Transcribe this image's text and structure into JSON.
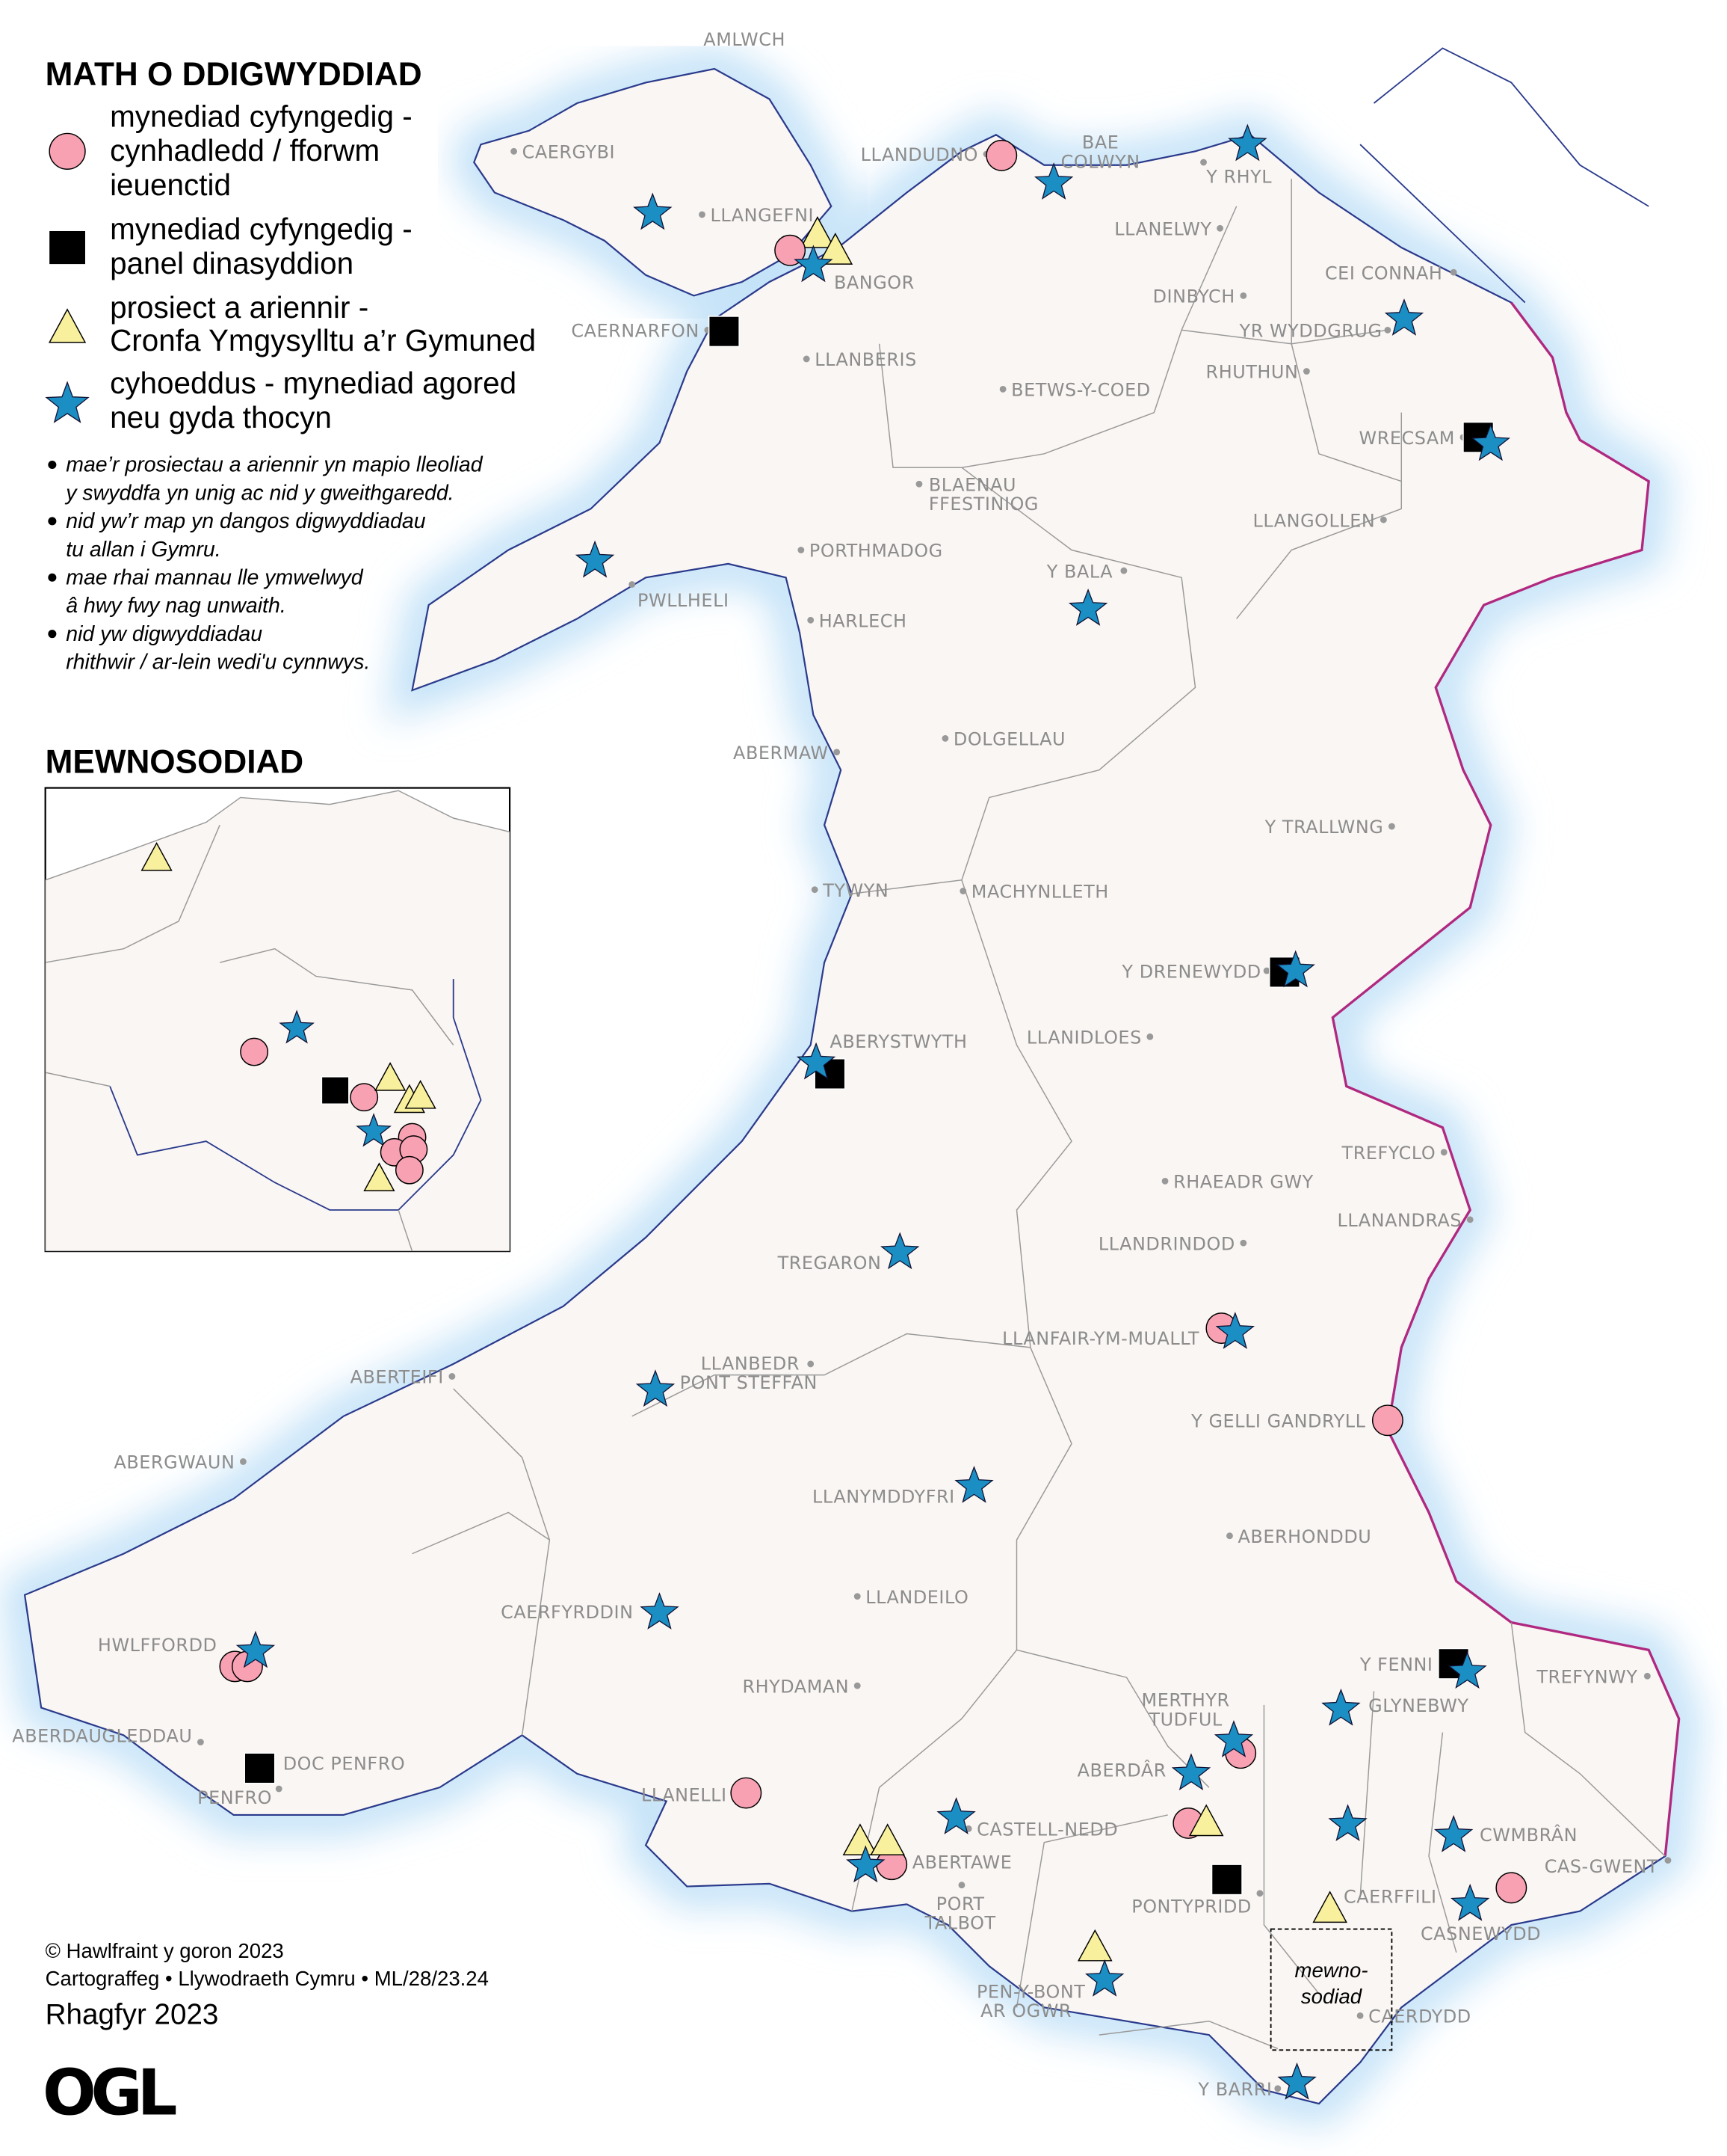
{
  "legend": {
    "title": "MATH O DDIGWYDDIAD",
    "items": [
      {
        "symbol": "pink-circle",
        "color": "#f7a1b3",
        "lines": [
          "mynediad cyfyngedig -",
          "cynhadledd / fforwm",
          "ieuenctid"
        ]
      },
      {
        "symbol": "black-square",
        "color": "#000000",
        "lines": [
          "mynediad cyfyngedig -",
          "panel dinasyddion"
        ]
      },
      {
        "symbol": "yellow-triangle",
        "color": "#f8f09c",
        "lines": [
          "prosiect a ariennir -",
          "Cronfa Ymgysylltu a’r Gymuned"
        ]
      },
      {
        "symbol": "blue-star",
        "color": "#1b8ec3",
        "lines": [
          "cyhoeddus - mynediad agored",
          "neu gyda thocyn"
        ]
      }
    ],
    "notes": [
      [
        "mae’r prosiectau a ariennir yn mapio lleoliad",
        "y swyddfa yn unig ac nid y gweithgaredd."
      ],
      [
        "nid yw’r map yn dangos digwyddiadau",
        "tu allan i Gymru."
      ],
      [
        "mae rhai mannau lle ymwelwyd",
        "â hwy fwy nag unwaith."
      ],
      [
        "nid yw digwyddiadau",
        "rhithwir / ar-lein wedi'u cynnwys."
      ]
    ]
  },
  "inset": {
    "title": "MEWNOSODIAD",
    "map_label": [
      "mewno-",
      "sodiad"
    ]
  },
  "credits": {
    "copyright": "© Hawlfraint y goron 2023",
    "cartography": "Cartograffeg • Llywodraeth Cymru • ML/28/23.24",
    "date": "Rhagfyr 2023",
    "logo": "OGL"
  },
  "colors": {
    "land": "#faf6f3",
    "coast": "#2a3a8c",
    "border": "#b0287f",
    "sea_glow": "#bfe0f7",
    "district": "#9a9a9a"
  },
  "towns": [
    "AMLWCH",
    "CAERGYBI",
    "LLANGEFNI",
    "LLANDUDNO",
    "BAE",
    "COLWYN",
    "Y RHYL",
    "LLANELWY",
    "BANGOR",
    "CEI CONNAH",
    "DINBYCH",
    "CAERNARFON",
    "YR WYDDGRUG",
    "LLANBERIS",
    "RHUTHUN",
    "BETWS-Y-COED",
    "WRECSAM",
    "BLAENAU",
    "FFESTINIOG",
    "LLANGOLLEN",
    "PORTHMADOG",
    "Y BALA",
    "PWLLHELI",
    "HARLECH",
    "ABERMAW",
    "DOLGELLAU",
    "Y TRALLWNG",
    "TYWYN",
    "MACHYNLLETH",
    "Y DRENEWYDD",
    "ABERYSTWYTH",
    "LLANIDLOES",
    "TREFYCLO",
    "RHAEADR GWY",
    "LLANANDRAS",
    "LLANDRINDOD",
    "TREGARON",
    "LLANFAIR-YM-MUALLT",
    "LLANBEDR",
    "PONT STEFFAN",
    "ABERTEIFI",
    "Y GELLI GANDRYLL",
    "ABERGWAUN",
    "LLANYMDDYFRI",
    "ABERHONDDU",
    "LLANDEILO",
    "CAERFYRDDIN",
    "HWLFFORDD",
    "Y FENNI",
    "TREFYNWY",
    "RHYDAMAN",
    "GLYNEBWY",
    "MERTHYR",
    "TUDFUL",
    "ABERDAUGLEDDAU",
    "DOC PENFRO",
    "ABERDÂR",
    "PENFRO",
    "LLANELLI",
    "CASTELL-NEDD",
    "CWMBRÂN",
    "CAS-GWENT",
    "ABERTAWE",
    "CAERFFILI",
    "PORT",
    "TALBOT",
    "PONTYPRIDD",
    "CASNEWYDD",
    "PEN-Y-BONT",
    "AR OGWR",
    "CAERDYDD",
    "Y BARRI"
  ]
}
